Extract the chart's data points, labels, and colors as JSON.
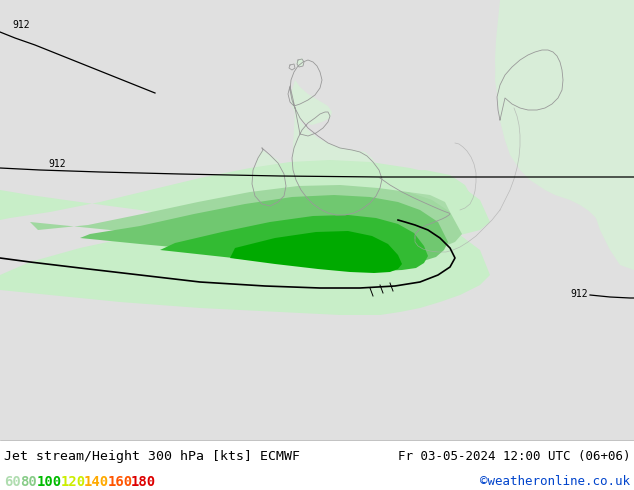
{
  "title_left": "Jet stream/Height 300 hPa [kts] ECMWF",
  "title_right": "Fr 03-05-2024 12:00 UTC (06+06)",
  "credit": "©weatheronline.co.uk",
  "legend_values": [
    "60",
    "80",
    "100",
    "120",
    "140",
    "160",
    "180"
  ],
  "legend_colors": [
    "#b0ddb0",
    "#88cc88",
    "#00bb00",
    "#ccee00",
    "#ffaa00",
    "#ff5500",
    "#dd0000"
  ],
  "bg_color": "#e8e8e8",
  "map_bg_color": "#e0e0e0",
  "title_fontsize": 9.5,
  "credit_fontsize": 9,
  "legend_fontsize": 10,
  "figsize": [
    6.34,
    4.9
  ],
  "dpi": 100,
  "color_60": "#c8eec8",
  "color_80": "#a0dca0",
  "color_100": "#55c055",
  "color_120": "#00aa00",
  "color_land": "#d8edd8",
  "color_coast": "#999999",
  "color_border": "#aaaaaa"
}
